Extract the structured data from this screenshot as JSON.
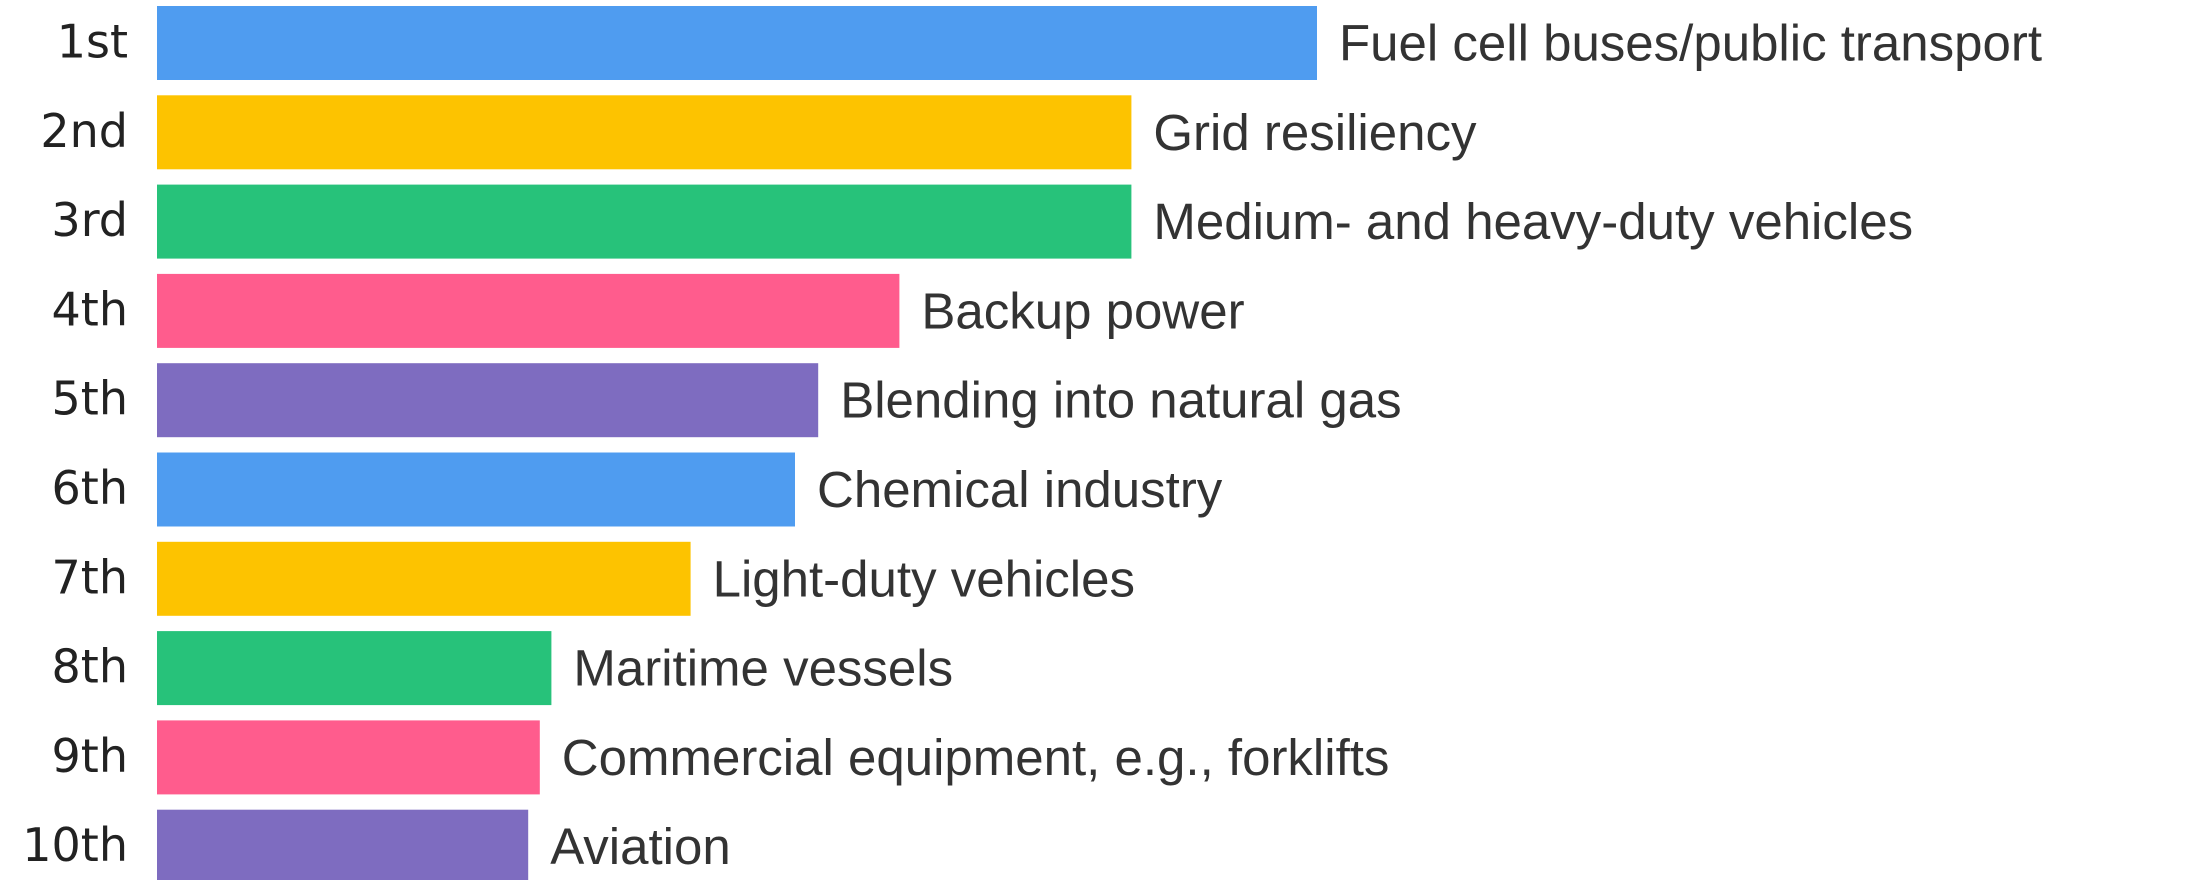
{
  "chart_data": {
    "type": "bar",
    "orientation": "horizontal",
    "ranks": [
      "1st",
      "2nd",
      "3rd",
      "4th",
      "5th",
      "6th",
      "7th",
      "8th",
      "9th",
      "10th"
    ],
    "categories": [
      "Fuel cell buses/public transport",
      "Grid resiliency",
      "Medium- and heavy-duty vehicles",
      "Backup power",
      "Blending into natural gas",
      "Chemical industry",
      "Light-duty vehicles",
      "Maritime vessels",
      "Commercial equipment, e.g., forklifts",
      "Aviation"
    ],
    "values": [
      100,
      84,
      84,
      64,
      57,
      55,
      46,
      34,
      33,
      32
    ],
    "colors": [
      "#4f9cf0",
      "#fdc300",
      "#27c27a",
      "#ff5c8d",
      "#7e6cc0",
      "#4f9cf0",
      "#fdc300",
      "#27c27a",
      "#ff5c8d",
      "#7e6cc0"
    ],
    "xlim": [
      0,
      100
    ]
  }
}
